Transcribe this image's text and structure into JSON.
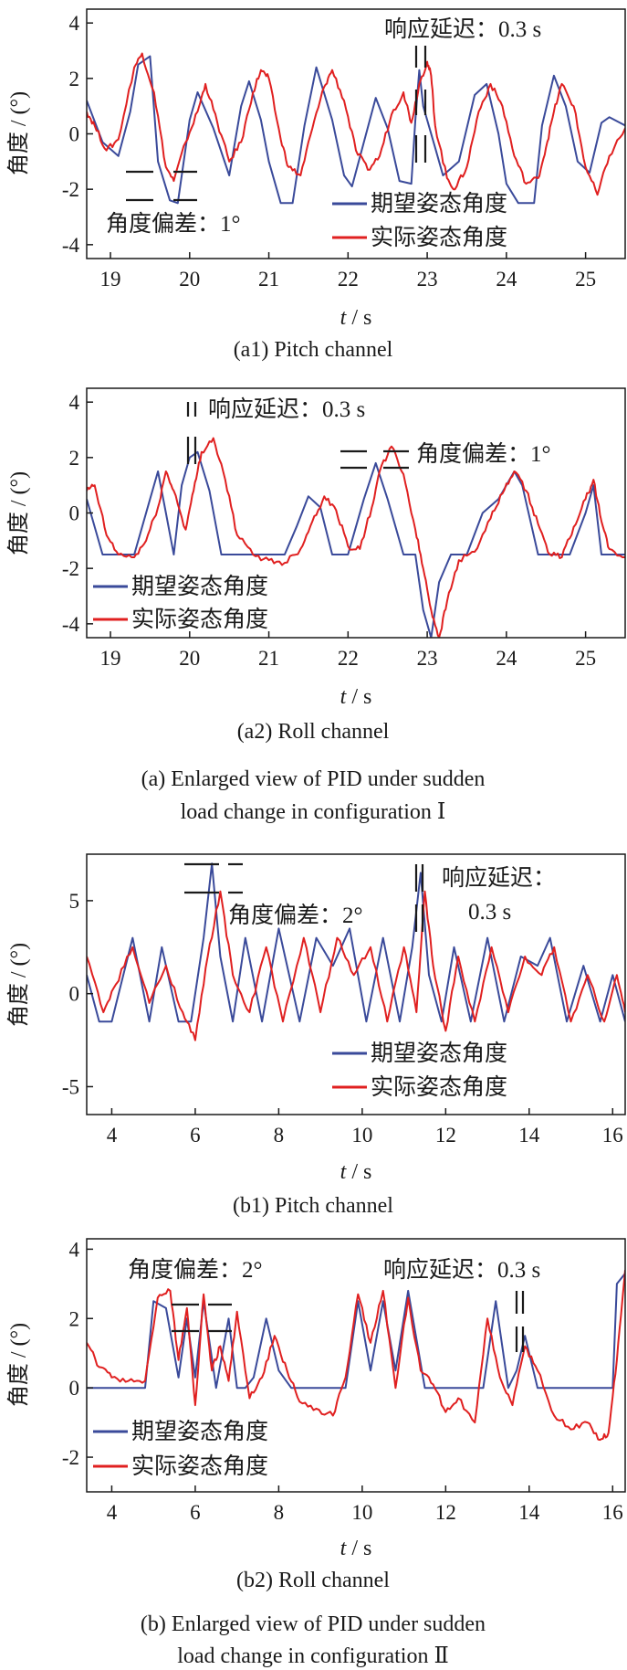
{
  "chart_data": [
    {
      "type": "line",
      "panel_id": "a1",
      "caption": "(a1) Pitch channel",
      "ylabel": "角度 / (°)",
      "xlabel_var": "t",
      "xlabel_unit": " / s",
      "xlim": [
        18.7,
        25.5
      ],
      "ylim": [
        -4.5,
        4.5
      ],
      "xticks": [
        19,
        20,
        21,
        22,
        23,
        24,
        25
      ],
      "yticks": [
        -4,
        -2,
        0,
        2,
        4
      ],
      "legend_position": "bottom-right",
      "annotations": [
        {
          "text": "响应延迟：0.3 s"
        },
        {
          "text": "角度偏差：1°"
        }
      ],
      "series": [
        {
          "name": "期望姿态角度",
          "color": "#3a4a9a",
          "x": [
            18.7,
            18.9,
            19.1,
            19.25,
            19.35,
            19.5,
            19.6,
            19.75,
            19.85,
            20.0,
            20.1,
            20.3,
            20.5,
            20.65,
            20.75,
            20.9,
            21.0,
            21.15,
            21.3,
            21.45,
            21.6,
            21.8,
            21.95,
            22.05,
            22.2,
            22.35,
            22.5,
            22.65,
            22.8,
            22.85,
            22.9,
            22.95,
            23.1,
            23.2,
            23.4,
            23.6,
            23.75,
            23.9,
            24.0,
            24.15,
            24.35,
            24.45,
            24.6,
            24.75,
            24.9,
            25.05,
            25.2,
            25.3,
            25.5
          ],
          "y": [
            1.2,
            -0.3,
            -0.8,
            0.8,
            2.5,
            2.8,
            -1.0,
            -2.4,
            -2.5,
            0.5,
            1.5,
            0.2,
            -1.5,
            1.0,
            1.9,
            0.5,
            -1.0,
            -2.5,
            -2.5,
            0.3,
            2.4,
            0.5,
            -1.5,
            -1.9,
            -0.3,
            1.3,
            0.2,
            -1.7,
            -1.8,
            0.5,
            2.3,
            1.0,
            -0.5,
            -1.5,
            -1.0,
            1.4,
            1.8,
            0.0,
            -1.8,
            -2.5,
            -2.5,
            0.3,
            2.1,
            1.0,
            -1.0,
            -1.4,
            0.4,
            0.6,
            0.3
          ]
        },
        {
          "name": "实际姿态角度",
          "color": "#e02020",
          "x": [
            18.7,
            18.8,
            18.95,
            19.1,
            19.3,
            19.4,
            19.55,
            19.7,
            19.8,
            19.95,
            20.1,
            20.2,
            20.35,
            20.5,
            20.65,
            20.8,
            20.9,
            21.0,
            21.15,
            21.25,
            21.4,
            21.55,
            21.7,
            21.8,
            21.95,
            22.1,
            22.25,
            22.4,
            22.55,
            22.7,
            22.8,
            22.9,
            23.0,
            23.05,
            23.1,
            23.25,
            23.35,
            23.5,
            23.65,
            23.8,
            23.95,
            24.1,
            24.25,
            24.4,
            24.5,
            24.6,
            24.7,
            24.85,
            25.0,
            25.15,
            25.3,
            25.5
          ],
          "y": [
            0.8,
            0.3,
            -0.6,
            -0.2,
            2.4,
            2.9,
            1.5,
            -1.2,
            -1.7,
            -0.3,
            0.8,
            1.8,
            0.4,
            -1.0,
            -0.3,
            1.5,
            2.3,
            2.0,
            -0.2,
            -1.2,
            -1.5,
            0.2,
            1.7,
            2.3,
            1.2,
            -0.6,
            -1.3,
            -0.8,
            0.7,
            1.5,
            0.4,
            1.8,
            2.6,
            2.1,
            0.3,
            -1.6,
            -2.0,
            -1.2,
            0.8,
            1.8,
            1.0,
            -0.8,
            -1.8,
            -1.6,
            -0.5,
            0.8,
            1.8,
            1.0,
            -1.2,
            -2.2,
            -0.8,
            0.2
          ]
        }
      ]
    },
    {
      "type": "line",
      "panel_id": "a2",
      "caption": "(a2) Roll channel",
      "ylabel": "角度 / (°)",
      "xlabel_var": "t",
      "xlabel_unit": " / s",
      "xlim": [
        18.7,
        25.5
      ],
      "ylim": [
        -4.5,
        4.5
      ],
      "xticks": [
        19,
        20,
        21,
        22,
        23,
        24,
        25
      ],
      "yticks": [
        -4,
        -2,
        0,
        2,
        4
      ],
      "legend_position": "bottom-left",
      "annotations": [
        {
          "text": "响应延迟：0.3 s"
        },
        {
          "text": "角度偏差：1°"
        }
      ],
      "series": [
        {
          "name": "期望姿态角度",
          "color": "#3a4a9a",
          "x": [
            18.7,
            18.9,
            19.0,
            19.3,
            19.5,
            19.6,
            19.7,
            19.8,
            19.9,
            20.0,
            20.1,
            20.25,
            20.4,
            20.6,
            20.9,
            21.2,
            21.35,
            21.5,
            21.65,
            21.8,
            22.0,
            22.2,
            22.35,
            22.5,
            22.7,
            22.85,
            22.95,
            23.05,
            23.15,
            23.3,
            23.5,
            23.7,
            23.9,
            24.1,
            24.2,
            24.4,
            24.6,
            24.8,
            25.0,
            25.1,
            25.2,
            25.35,
            25.5
          ],
          "y": [
            0.5,
            -1.5,
            -1.5,
            -1.5,
            0.5,
            1.5,
            0.0,
            -1.5,
            1.0,
            2.0,
            2.2,
            0.8,
            -1.5,
            -1.5,
            -1.5,
            -1.5,
            -0.5,
            0.6,
            0.2,
            -1.5,
            -1.5,
            0.5,
            1.8,
            0.5,
            -1.5,
            -1.5,
            -3.5,
            -4.5,
            -2.5,
            -1.5,
            -1.5,
            0.0,
            0.5,
            1.5,
            1.0,
            -1.5,
            -1.5,
            -1.5,
            0.0,
            1.0,
            -1.5,
            -1.5,
            -1.5
          ]
        },
        {
          "name": "实际姿态角度",
          "color": "#e02020",
          "x": [
            18.7,
            18.8,
            18.95,
            19.1,
            19.3,
            19.45,
            19.6,
            19.7,
            19.8,
            19.95,
            20.05,
            20.15,
            20.3,
            20.45,
            20.6,
            20.8,
            21.0,
            21.2,
            21.4,
            21.55,
            21.7,
            21.85,
            22.0,
            22.15,
            22.3,
            22.4,
            22.55,
            22.7,
            22.85,
            22.95,
            23.05,
            23.15,
            23.25,
            23.4,
            23.6,
            23.8,
            23.95,
            24.1,
            24.25,
            24.4,
            24.55,
            24.7,
            24.85,
            25.0,
            25.1,
            25.2,
            25.3,
            25.5
          ],
          "y": [
            0.8,
            1.0,
            -0.8,
            -1.5,
            -1.6,
            -1.0,
            0.2,
            1.5,
            0.8,
            -0.6,
            0.8,
            2.2,
            2.7,
            1.2,
            -0.8,
            -1.5,
            -1.7,
            -1.8,
            -1.3,
            -0.3,
            0.6,
            0.1,
            -1.2,
            -1.3,
            0.2,
            1.5,
            2.4,
            1.4,
            -0.6,
            -2.0,
            -3.5,
            -4.5,
            -3.2,
            -1.7,
            -1.4,
            -0.2,
            0.7,
            1.5,
            0.8,
            -0.4,
            -1.5,
            -1.6,
            -0.5,
            0.5,
            1.2,
            -0.3,
            -1.3,
            -1.6
          ]
        }
      ]
    },
    {
      "type": "line",
      "panel_id": "b1",
      "caption": "(b1) Pitch channel",
      "ylabel": "角度 / (°)",
      "xlabel_var": "t",
      "xlabel_unit": " / s",
      "xlim": [
        3.4,
        16.3
      ],
      "ylim": [
        -6.5,
        7.5
      ],
      "xticks": [
        4,
        6,
        8,
        10,
        12,
        14,
        16
      ],
      "yticks": [
        -5,
        0,
        5
      ],
      "legend_position": "bottom-right",
      "annotations": [
        {
          "text": "角度偏差：2°"
        },
        {
          "text": "响应延迟："
        },
        {
          "text": "0.3 s"
        }
      ],
      "series": [
        {
          "name": "期望姿态角度",
          "color": "#3a4a9a",
          "x": [
            3.4,
            3.7,
            4.0,
            4.5,
            4.9,
            5.2,
            5.6,
            5.9,
            6.2,
            6.4,
            6.6,
            6.9,
            7.2,
            7.6,
            8.0,
            8.5,
            8.9,
            9.3,
            9.7,
            10.1,
            10.5,
            10.9,
            11.2,
            11.4,
            11.6,
            11.9,
            12.2,
            12.6,
            13.0,
            13.4,
            13.8,
            14.2,
            14.5,
            14.9,
            15.3,
            15.7,
            16.0,
            16.3
          ],
          "y": [
            1.0,
            -1.5,
            -1.5,
            3.0,
            -1.5,
            2.5,
            -1.5,
            -1.5,
            3.0,
            7.0,
            2.0,
            -1.5,
            3.0,
            -1.5,
            3.5,
            -1.5,
            3.0,
            1.5,
            3.5,
            -1.5,
            3.0,
            -1.5,
            2.5,
            6.5,
            1.0,
            -1.5,
            2.5,
            -1.5,
            3.0,
            -1.5,
            2.0,
            1.5,
            3.0,
            -1.5,
            1.5,
            -1.5,
            1.0,
            -1.5
          ]
        },
        {
          "name": "实际姿态角度",
          "color": "#e02020",
          "x": [
            3.4,
            3.8,
            4.1,
            4.5,
            4.9,
            5.3,
            5.7,
            6.0,
            6.3,
            6.6,
            6.9,
            7.3,
            7.7,
            8.1,
            8.6,
            9.0,
            9.4,
            9.8,
            10.2,
            10.6,
            11.0,
            11.3,
            11.5,
            11.7,
            12.0,
            12.3,
            12.7,
            13.1,
            13.5,
            13.9,
            14.3,
            14.6,
            15.0,
            15.4,
            15.8,
            16.1,
            16.3
          ],
          "y": [
            2.0,
            -1.0,
            0.5,
            2.5,
            -0.5,
            1.5,
            -1.0,
            -2.5,
            2.0,
            5.5,
            1.0,
            -1.0,
            2.5,
            -1.5,
            3.0,
            -1.0,
            3.0,
            1.0,
            2.5,
            -1.5,
            2.5,
            -1.0,
            5.5,
            1.5,
            -2.0,
            2.0,
            -1.5,
            2.5,
            -1.0,
            2.0,
            1.0,
            2.5,
            -1.5,
            1.0,
            -1.5,
            1.0,
            -1.0
          ]
        }
      ]
    },
    {
      "type": "line",
      "panel_id": "b2",
      "caption": "(b2) Roll channel",
      "ylabel": "角度 / (°)",
      "xlabel_var": "t",
      "xlabel_unit": " / s",
      "xlim": [
        3.4,
        16.3
      ],
      "ylim": [
        -3.0,
        4.3
      ],
      "xticks": [
        4,
        6,
        8,
        10,
        12,
        14,
        16
      ],
      "yticks": [
        -2,
        0,
        2,
        4
      ],
      "legend_position": "bottom-left",
      "annotations": [
        {
          "text": "角度偏差：2°"
        },
        {
          "text": "响应延迟：0.3 s"
        }
      ],
      "series": [
        {
          "name": "期望姿态角度",
          "color": "#3a4a9a",
          "x": [
            3.4,
            4.8,
            5.0,
            5.3,
            5.6,
            5.8,
            6.0,
            6.2,
            6.5,
            6.8,
            7.0,
            7.2,
            7.4,
            7.7,
            8.0,
            8.3,
            8.6,
            9.2,
            9.6,
            9.9,
            10.2,
            10.5,
            10.8,
            11.1,
            11.5,
            11.8,
            12.1,
            12.5,
            12.9,
            13.2,
            13.5,
            13.7,
            13.9,
            14.2,
            14.6,
            15.0,
            15.4,
            15.8,
            16.0,
            16.1,
            16.3
          ],
          "y": [
            0.0,
            0.0,
            2.5,
            2.3,
            0.3,
            2.0,
            0.3,
            2.5,
            0.0,
            2.0,
            0.0,
            0.0,
            0.3,
            2.0,
            0.5,
            0.0,
            0.0,
            0.0,
            0.0,
            2.5,
            0.5,
            2.5,
            0.5,
            2.8,
            0.0,
            0.0,
            0.0,
            0.0,
            0.0,
            2.5,
            0.0,
            0.5,
            1.5,
            0.0,
            0.0,
            0.0,
            0.0,
            0.0,
            0.0,
            3.0,
            3.3
          ]
        },
        {
          "name": "实际姿态角度",
          "color": "#e02020",
          "x": [
            3.4,
            3.7,
            4.0,
            4.4,
            4.8,
            5.1,
            5.4,
            5.6,
            5.8,
            6.0,
            6.2,
            6.4,
            6.6,
            6.8,
            7.0,
            7.3,
            7.6,
            7.9,
            8.2,
            8.5,
            8.9,
            9.3,
            9.6,
            9.9,
            10.2,
            10.5,
            10.8,
            11.1,
            11.4,
            11.7,
            12.0,
            12.3,
            12.7,
            13.0,
            13.3,
            13.6,
            13.9,
            14.2,
            14.6,
            15.0,
            15.4,
            15.7,
            15.9,
            16.1,
            16.3
          ],
          "y": [
            1.3,
            0.6,
            0.3,
            0.2,
            0.2,
            2.6,
            2.8,
            0.8,
            2.3,
            -0.5,
            2.7,
            0.5,
            1.2,
            0.2,
            2.2,
            -0.3,
            0.3,
            1.5,
            0.5,
            -0.4,
            -0.6,
            -0.8,
            0.3,
            2.7,
            1.3,
            2.8,
            0.0,
            2.6,
            0.5,
            0.1,
            -0.7,
            -0.3,
            -1.0,
            2.0,
            0.3,
            -0.5,
            1.2,
            0.5,
            -0.8,
            -1.2,
            -1.0,
            -1.5,
            -1.3,
            0.8,
            3.4
          ]
        }
      ]
    }
  ],
  "figure_captions": {
    "a_line1": "(a) Enlarged view of PID under sudden",
    "a_line2": "load change in configuration Ⅰ",
    "b_line1": "(b) Enlarged view of PID under sudden",
    "b_line2": "load change in configuration Ⅱ"
  }
}
